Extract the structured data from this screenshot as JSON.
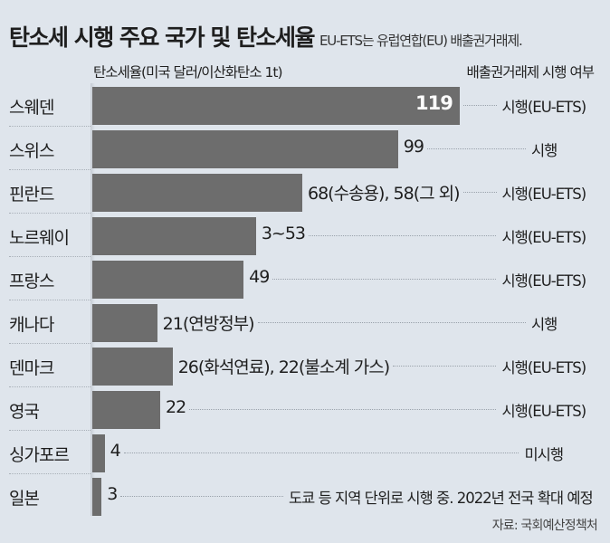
{
  "chart_data": {
    "type": "bar",
    "orientation": "horizontal",
    "title": "탄소세 시행 주요 국가 및 탄소세율",
    "subtitle": "EU-ETS는 유럽연합(EU) 배출권거래제.",
    "value_header": "탄소세율(미국 달러/이산화탄소 1t)",
    "status_header": "배출권거래제 시행 여부",
    "source": "자료: 국회예산정책처",
    "bar_color": "#6d6d6d",
    "background_color": "#dfe5ec",
    "categories": [
      "스웨덴",
      "스위스",
      "핀란드",
      "노르웨이",
      "프랑스",
      "캐나다",
      "덴마크",
      "영국",
      "싱가포르",
      "일본"
    ],
    "values": [
      119,
      99,
      68,
      53,
      49,
      21,
      26,
      22,
      4,
      3
    ],
    "value_labels": [
      "119",
      "99",
      "68(수송용), 58(그 외)",
      "3~53",
      "49",
      "21(연방정부)",
      "26(화석연료), 22(불소계 가스)",
      "22",
      "4",
      "3"
    ],
    "status": [
      "시행(EU-ETS)",
      "시행",
      "시행(EU-ETS)",
      "시행(EU-ETS)",
      "시행(EU-ETS)",
      "시행",
      "시행(EU-ETS)",
      "시행(EU-ETS)",
      "미시행",
      "도쿄 등 지역 단위로 시행 중. 2022년 전국 확대 예정"
    ],
    "xlim": [
      0,
      119
    ],
    "grid": false
  }
}
